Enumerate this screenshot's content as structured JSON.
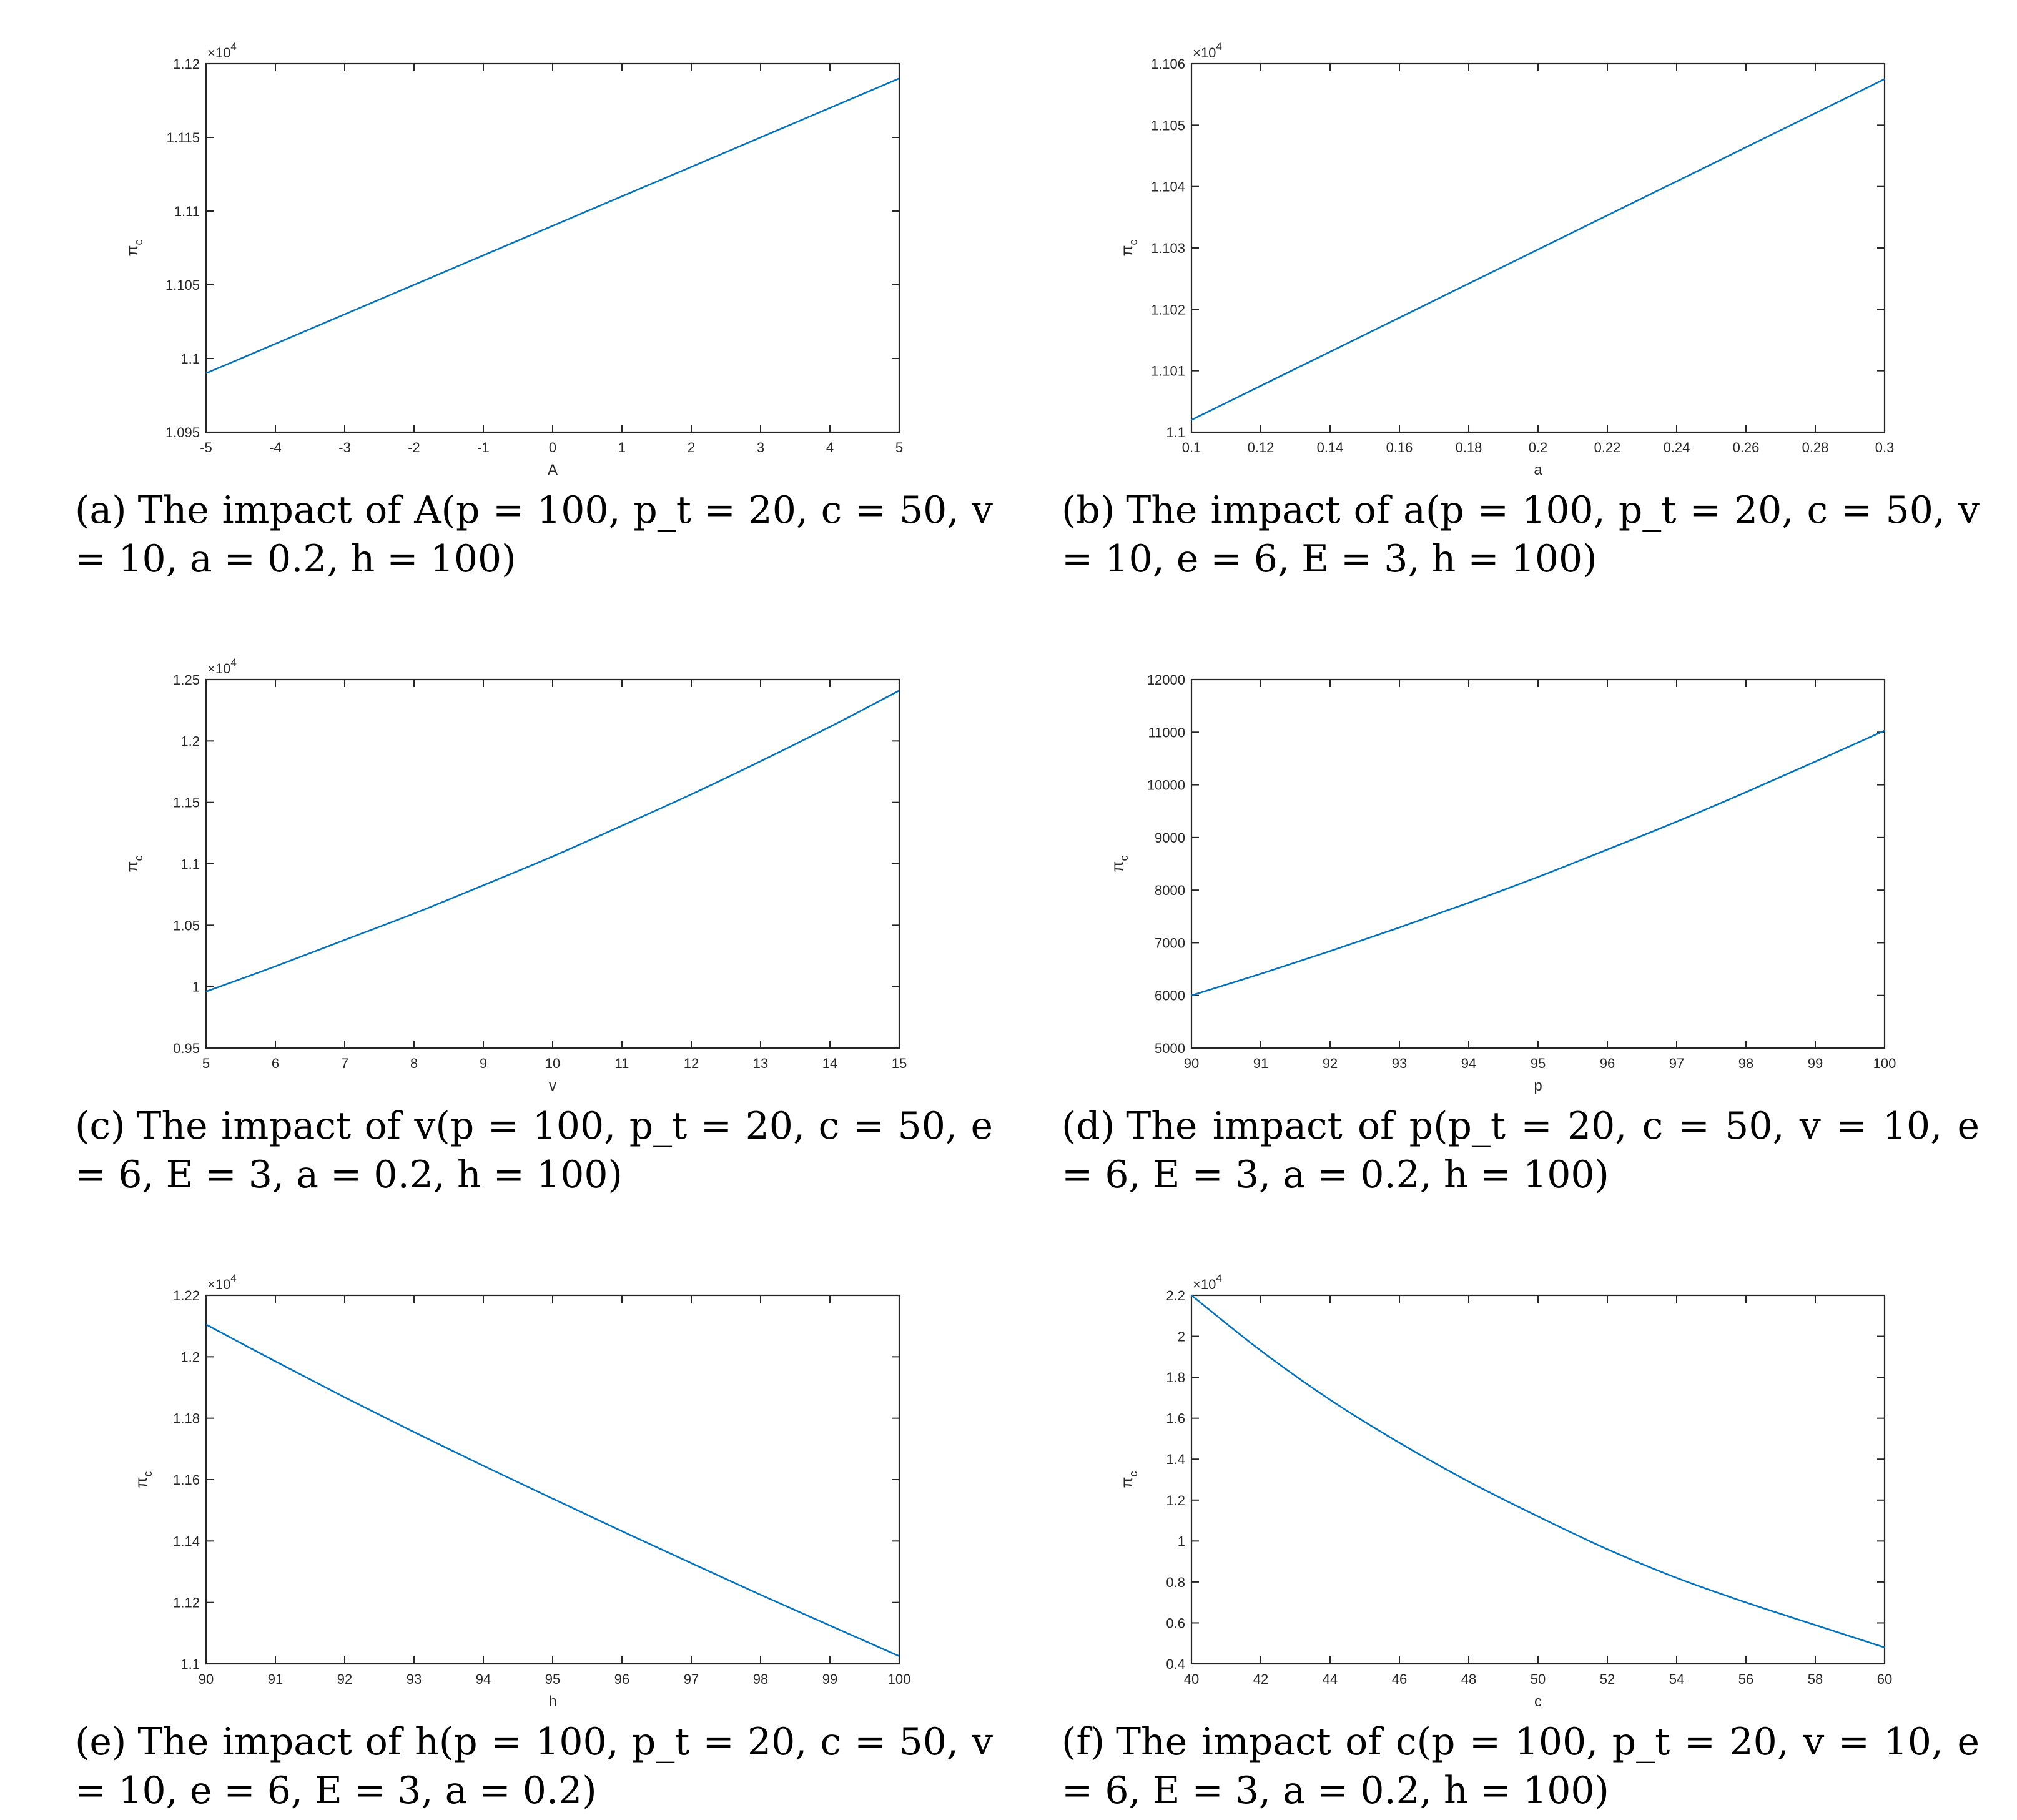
{
  "colors": {
    "line": "#0072BD",
    "axis": "#262626",
    "text": "#262626"
  },
  "panels": [
    {
      "letter": "(a)",
      "caption": "The impact of A(p = 100, p_t = 20, c = 50, v = 10, a = 0.2, h = 100)",
      "chart_data": {
        "type": "line",
        "xlabel": "A",
        "ylabel": "πc",
        "xlim": [
          -5,
          5
        ],
        "ylim": [
          1.095,
          1.12
        ],
        "exponent": "×10^4",
        "xticks": [
          "-5",
          "-4",
          "-3",
          "-2",
          "-1",
          "0",
          "1",
          "2",
          "3",
          "4",
          "5"
        ],
        "yticks": [
          "1.095",
          "1.1",
          "1.105",
          "1.11",
          "1.115",
          "1.12"
        ],
        "x": [
          -5,
          5
        ],
        "y": [
          1.099,
          1.119
        ]
      }
    },
    {
      "letter": "(b)",
      "caption": "The impact of a(p = 100, p_t = 20, c = 50, v = 10, e = 6, E = 3, h = 100)",
      "chart_data": {
        "type": "line",
        "xlabel": "a",
        "ylabel": "πc",
        "xlim": [
          0.1,
          0.3
        ],
        "ylim": [
          1.1,
          1.106
        ],
        "exponent": "×10^4",
        "xticks": [
          "0.1",
          "0.12",
          "0.14",
          "0.16",
          "0.18",
          "0.2",
          "0.22",
          "0.24",
          "0.26",
          "0.28",
          "0.3"
        ],
        "yticks": [
          "1.1",
          "1.101",
          "1.102",
          "1.103",
          "1.104",
          "1.105",
          "1.106"
        ],
        "x": [
          0.1,
          0.3
        ],
        "y": [
          1.1002,
          1.10575
        ]
      }
    },
    {
      "letter": "(c)",
      "caption": "The impact of v(p = 100, p_t = 20, c = 50, e = 6, E = 3, a = 0.2, h = 100)",
      "chart_data": {
        "type": "line",
        "xlabel": "v",
        "ylabel": "πc",
        "xlim": [
          5,
          15
        ],
        "ylim": [
          0.95,
          1.25
        ],
        "exponent": "×10^4",
        "xticks": [
          "5",
          "6",
          "7",
          "8",
          "9",
          "10",
          "11",
          "12",
          "13",
          "14",
          "15"
        ],
        "yticks": [
          "0.95",
          "1",
          "1.05",
          "1.1",
          "1.15",
          "1.2",
          "1.25"
        ],
        "x": [
          5,
          6,
          7,
          8,
          9,
          10,
          11,
          12,
          13,
          14,
          15
        ],
        "y": [
          0.996,
          1.0165,
          1.038,
          1.0595,
          1.0825,
          1.106,
          1.131,
          1.1565,
          1.1835,
          1.2115,
          1.241
        ]
      }
    },
    {
      "letter": "(d)",
      "caption": "The impact of p(p_t = 20, c = 50, v = 10, e = 6, E = 3, a = 0.2, h = 100)",
      "chart_data": {
        "type": "line",
        "xlabel": "p",
        "ylabel": "πc",
        "xlim": [
          90,
          100
        ],
        "ylim": [
          5000,
          12000
        ],
        "exponent": "",
        "xticks": [
          "90",
          "91",
          "92",
          "93",
          "94",
          "95",
          "96",
          "97",
          "98",
          "99",
          "100"
        ],
        "yticks": [
          "5000",
          "6000",
          "7000",
          "8000",
          "9000",
          "10000",
          "11000",
          "12000"
        ],
        "x": [
          90,
          91,
          92,
          93,
          94,
          95,
          96,
          97,
          98,
          99,
          100
        ],
        "y": [
          6000,
          6410,
          6840,
          7290,
          7760,
          8250,
          8770,
          9300,
          9860,
          10440,
          11030
        ]
      }
    },
    {
      "letter": "(e)",
      "caption": "The impact of h(p = 100, p_t = 20, c = 50, v = 10, e = 6, E = 3, a = 0.2)",
      "chart_data": {
        "type": "line",
        "xlabel": "h",
        "ylabel": "πc",
        "xlim": [
          90,
          100
        ],
        "ylim": [
          1.1,
          1.22
        ],
        "exponent": "×10^4",
        "xticks": [
          "90",
          "91",
          "92",
          "93",
          "94",
          "95",
          "96",
          "97",
          "98",
          "99",
          "100"
        ],
        "yticks": [
          "1.1",
          "1.12",
          "1.14",
          "1.16",
          "1.18",
          "1.2",
          "1.22"
        ],
        "x": [
          90,
          91,
          92,
          93,
          94,
          95,
          96,
          97,
          98,
          99,
          100
        ],
        "y": [
          1.2105,
          1.1985,
          1.1868,
          1.1755,
          1.1645,
          1.1538,
          1.1432,
          1.1328,
          1.1225,
          1.1125,
          1.1025
        ]
      }
    },
    {
      "letter": "(f)",
      "caption": "The impact of c(p = 100, p_t = 20, v = 10, e = 6, E = 3, a = 0.2, h = 100)",
      "chart_data": {
        "type": "line",
        "xlabel": "c",
        "ylabel": "πc",
        "xlim": [
          40,
          60
        ],
        "ylim": [
          0.4,
          2.2
        ],
        "exponent": "×10^4",
        "xticks": [
          "40",
          "42",
          "44",
          "46",
          "48",
          "50",
          "52",
          "54",
          "56",
          "58",
          "60"
        ],
        "yticks": [
          "0.4",
          "0.6",
          "0.8",
          "1",
          "1.2",
          "1.4",
          "1.6",
          "1.8",
          "2",
          "2.2"
        ],
        "x": [
          40,
          42,
          44,
          46,
          48,
          50,
          52,
          54,
          56,
          58,
          60
        ],
        "y": [
          2.2,
          1.93,
          1.69,
          1.48,
          1.29,
          1.12,
          0.96,
          0.82,
          0.7,
          0.59,
          0.48
        ]
      }
    }
  ]
}
